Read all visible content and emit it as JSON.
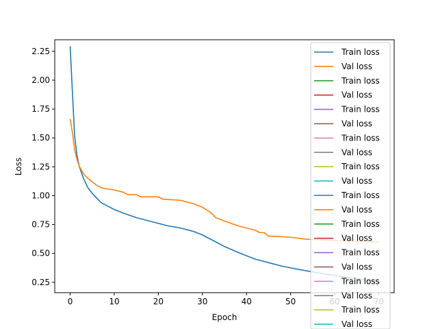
{
  "chart_data": {
    "type": "line",
    "xlabel": "Epoch",
    "ylabel": "Loss",
    "xlim": [
      -3.5,
      73.5
    ],
    "ylim": [
      0.16,
      2.35
    ],
    "xticks": [
      0,
      10,
      20,
      30,
      40,
      50,
      60,
      70
    ],
    "yticks": [
      0.25,
      0.5,
      0.75,
      1.0,
      1.25,
      1.5,
      1.75,
      2.0,
      2.25
    ],
    "ytick_labels": [
      "0.25",
      "0.50",
      "0.75",
      "1.00",
      "1.25",
      "1.50",
      "1.75",
      "2.00",
      "2.25"
    ],
    "grid": false,
    "legend_position": "right",
    "series": [
      {
        "name": "Train loss",
        "color": "#1f77b4",
        "x": [
          0,
          0.5,
          1,
          1.5,
          2,
          3,
          4,
          5,
          6,
          7,
          8,
          10,
          12,
          15,
          18,
          20,
          22,
          25,
          28,
          30,
          32,
          35,
          38,
          40,
          42,
          45,
          48,
          50,
          52,
          55,
          58,
          60,
          63,
          65,
          68,
          70
        ],
        "y": [
          2.29,
          1.9,
          1.52,
          1.36,
          1.26,
          1.15,
          1.07,
          1.02,
          0.98,
          0.94,
          0.92,
          0.88,
          0.85,
          0.81,
          0.78,
          0.76,
          0.74,
          0.72,
          0.69,
          0.66,
          0.62,
          0.56,
          0.51,
          0.48,
          0.45,
          0.42,
          0.39,
          0.375,
          0.36,
          0.34,
          0.32,
          0.31,
          0.29,
          0.28,
          0.265,
          0.25
        ]
      },
      {
        "name": "Val loss",
        "color": "#ff7f0e",
        "x": [
          0,
          0.5,
          1,
          1.5,
          2,
          3,
          4,
          5,
          6,
          7,
          8,
          10,
          12,
          13,
          15,
          16,
          18,
          20,
          21,
          25,
          28,
          30,
          32,
          33,
          35,
          38,
          40,
          42,
          43,
          44,
          45,
          48,
          50,
          52,
          53,
          55,
          58,
          60,
          63,
          65,
          68,
          70
        ],
        "y": [
          1.66,
          1.55,
          1.4,
          1.32,
          1.26,
          1.19,
          1.15,
          1.12,
          1.09,
          1.07,
          1.06,
          1.05,
          1.03,
          1.01,
          1.01,
          0.99,
          0.99,
          0.99,
          0.97,
          0.96,
          0.93,
          0.9,
          0.85,
          0.81,
          0.78,
          0.74,
          0.72,
          0.7,
          0.68,
          0.68,
          0.65,
          0.645,
          0.64,
          0.63,
          0.625,
          0.62,
          0.615,
          0.61,
          0.61,
          0.605,
          0.6,
          0.6
        ]
      }
    ],
    "legend_entries": [
      {
        "label": "Train loss",
        "color": "#1f77b4"
      },
      {
        "label": "Val loss",
        "color": "#ff7f0e"
      },
      {
        "label": "Train loss",
        "color": "#2ca02c"
      },
      {
        "label": "Val loss",
        "color": "#d62728"
      },
      {
        "label": "Train loss",
        "color": "#9467bd"
      },
      {
        "label": "Val loss",
        "color": "#8c564b"
      },
      {
        "label": "Train loss",
        "color": "#e377c2"
      },
      {
        "label": "Val loss",
        "color": "#7f7f7f"
      },
      {
        "label": "Train loss",
        "color": "#bcbd22"
      },
      {
        "label": "Val loss",
        "color": "#17becf"
      },
      {
        "label": "Train loss",
        "color": "#1f77b4"
      },
      {
        "label": "Val loss",
        "color": "#ff7f0e"
      },
      {
        "label": "Train loss",
        "color": "#2ca02c"
      },
      {
        "label": "Val loss",
        "color": "#d62728"
      },
      {
        "label": "Train loss",
        "color": "#9467bd"
      },
      {
        "label": "Val loss",
        "color": "#8c564b"
      },
      {
        "label": "Train loss",
        "color": "#e377c2"
      },
      {
        "label": "Val loss",
        "color": "#7f7f7f"
      },
      {
        "label": "Train loss",
        "color": "#bcbd22"
      },
      {
        "label": "Val loss",
        "color": "#17becf"
      }
    ]
  }
}
